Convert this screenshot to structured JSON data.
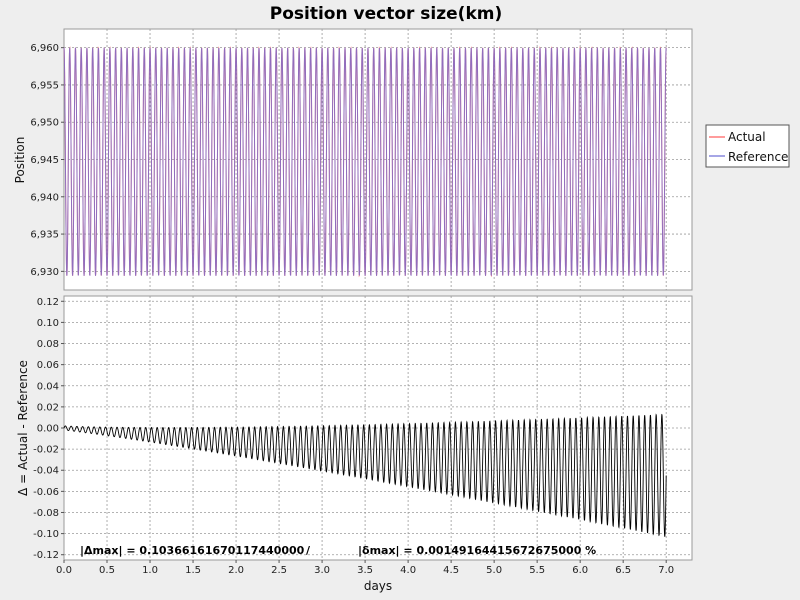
{
  "chart_data": [
    {
      "type": "line",
      "title": "Position vector size(km)",
      "ylabel": "Position",
      "xlabel": "",
      "xlim": [
        0,
        7.3
      ],
      "ylim": [
        6927.5,
        6962.5
      ],
      "yticks": [
        6930,
        6935,
        6940,
        6945,
        6950,
        6955,
        6960
      ],
      "ytick_labels": [
        "6,930",
        "6,935",
        "6,940",
        "6,945",
        "6,950",
        "6,955",
        "6,960"
      ],
      "grid": true,
      "legend_position": "right",
      "series": [
        {
          "name": "Actual",
          "color": "#ff5a5a",
          "x_range": [
            0,
            7.0
          ],
          "min": 6929.4,
          "max": 6960.0,
          "cycles": 105
        },
        {
          "name": "Reference",
          "color": "#6b6bd6",
          "x_range": [
            0,
            7.0
          ],
          "min": 6929.4,
          "max": 6960.0,
          "cycles": 105
        }
      ]
    },
    {
      "type": "line",
      "ylabel": "Δ = Actual - Reference",
      "xlabel": "days",
      "xlim": [
        0,
        7.3
      ],
      "ylim": [
        -0.125,
        0.125
      ],
      "xticks": [
        0.0,
        0.5,
        1.0,
        1.5,
        2.0,
        2.5,
        3.0,
        3.5,
        4.0,
        4.5,
        5.0,
        5.5,
        6.0,
        6.5,
        7.0
      ],
      "xtick_labels": [
        "0.0",
        "0.5",
        "1.0",
        "1.5",
        "2.0",
        "2.5",
        "3.0",
        "3.5",
        "4.0",
        "4.5",
        "5.0",
        "5.5",
        "6.0",
        "6.5",
        "7.0"
      ],
      "yticks": [
        -0.12,
        -0.1,
        -0.08,
        -0.06,
        -0.04,
        -0.02,
        0.0,
        0.02,
        0.04,
        0.06,
        0.08,
        0.1,
        0.12
      ],
      "ytick_labels": [
        "-0.12",
        "-0.10",
        "-0.08",
        "-0.06",
        "-0.04",
        "-0.02",
        "0.00",
        "0.02",
        "0.04",
        "0.06",
        "0.08",
        "0.10",
        "0.12"
      ],
      "grid": true,
      "series": [
        {
          "color": "#000000",
          "x_range": [
            0,
            7.0
          ],
          "drift_end": -0.045,
          "amplitude_end": 0.058,
          "cycles": 105
        }
      ],
      "annotation": {
        "delta_max": "|Δmax| = 0.10366161670117440000",
        "separator": "/",
        "delta_rel_max": "|δmax| = 0.00149164415672675000 %"
      }
    }
  ]
}
